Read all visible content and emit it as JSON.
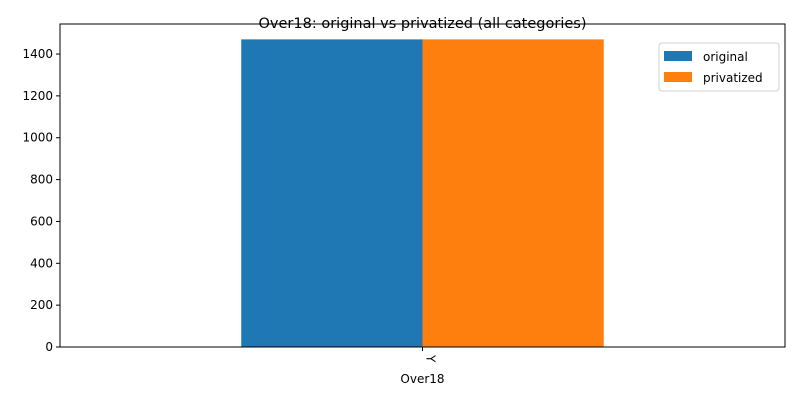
{
  "chart_data": {
    "type": "bar",
    "title": "Over18: original vs privatized (all categories)",
    "xlabel": "Over18",
    "ylabel": "",
    "categories": [
      "Y"
    ],
    "series": [
      {
        "name": "original",
        "values": [
          1470
        ],
        "color": "#1f77b4"
      },
      {
        "name": "privatized",
        "values": [
          1470
        ],
        "color": "#ff7f0e"
      }
    ],
    "ylim": [
      0,
      1543.5
    ],
    "yticks": [
      0,
      200,
      400,
      600,
      800,
      1000,
      1200,
      1400
    ],
    "legend_position": "top-right",
    "grid": false
  }
}
